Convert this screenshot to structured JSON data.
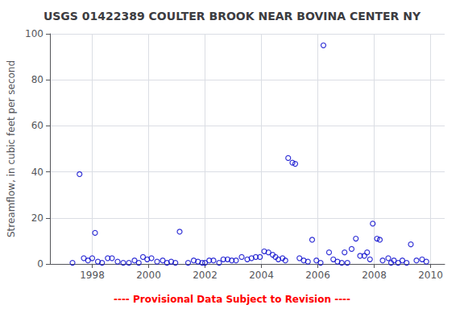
{
  "chart_data": {
    "type": "scatter",
    "title": "USGS 01422389 COULTER BROOK NEAR BOVINA CENTER NY",
    "ylabel": "Streamflow, in cubic feet per second",
    "annotations": [
      {
        "text": "---- Provisional Data Subject to Revision ----",
        "color": "#ff0000"
      }
    ],
    "x": [
      1997.3,
      1997.55,
      1997.7,
      1997.85,
      1998.0,
      1998.1,
      1998.2,
      1998.35,
      1998.55,
      1998.7,
      1998.9,
      1999.1,
      1999.3,
      1999.5,
      1999.65,
      1999.8,
      1999.95,
      2000.1,
      2000.3,
      2000.5,
      2000.65,
      2000.8,
      2000.95,
      2001.1,
      2001.4,
      2001.6,
      2001.75,
      2001.9,
      2002.0,
      2002.15,
      2002.3,
      2002.5,
      2002.65,
      2002.8,
      2002.95,
      2003.1,
      2003.3,
      2003.5,
      2003.65,
      2003.8,
      2003.95,
      2004.1,
      2004.25,
      2004.4,
      2004.5,
      2004.6,
      2004.75,
      2004.85,
      2004.95,
      2005.1,
      2005.2,
      2005.35,
      2005.5,
      2005.65,
      2005.8,
      2005.95,
      2006.1,
      2006.2,
      2006.4,
      2006.55,
      2006.7,
      2006.85,
      2006.95,
      2007.05,
      2007.2,
      2007.35,
      2007.5,
      2007.65,
      2007.75,
      2007.85,
      2007.95,
      2008.1,
      2008.2,
      2008.3,
      2008.5,
      2008.6,
      2008.7,
      2008.85,
      2009.0,
      2009.15,
      2009.3,
      2009.5,
      2009.7,
      2009.85
    ],
    "values": [
      0.5,
      39.0,
      2.5,
      1.5,
      2.5,
      13.5,
      1.0,
      0.5,
      2.5,
      2.5,
      1.0,
      0.5,
      0.5,
      1.5,
      0.5,
      3.0,
      2.0,
      2.5,
      1.0,
      1.5,
      0.5,
      1.0,
      0.5,
      14.0,
      0.5,
      1.5,
      1.0,
      0.5,
      0.5,
      1.5,
      1.5,
      0.5,
      2.0,
      2.0,
      1.5,
      1.5,
      3.0,
      2.0,
      2.5,
      3.0,
      3.0,
      5.5,
      5.0,
      4.0,
      3.0,
      2.0,
      2.5,
      1.5,
      46.0,
      44.0,
      43.5,
      2.5,
      1.5,
      1.0,
      10.5,
      1.5,
      0.5,
      95.0,
      5.0,
      2.0,
      1.0,
      0.5,
      5.0,
      0.5,
      6.5,
      11.0,
      3.5,
      3.5,
      5.0,
      2.0,
      17.5,
      11.0,
      10.5,
      1.5,
      2.5,
      0.5,
      1.5,
      0.5,
      1.5,
      0.5,
      8.5,
      1.5,
      2.0,
      1.0
    ],
    "color": "#0000cc",
    "xlim": [
      1996.5,
      2010.5
    ],
    "xticks": [
      1998,
      2000,
      2002,
      2004,
      2006,
      2008,
      2010
    ],
    "ylim": [
      0,
      100
    ],
    "yticks": [
      0,
      20,
      40,
      60,
      80,
      100
    ],
    "grid": true
  }
}
